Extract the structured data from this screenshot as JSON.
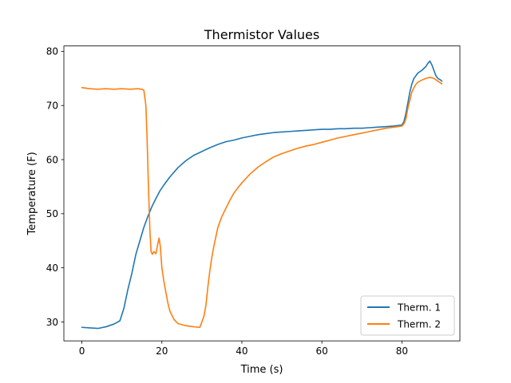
{
  "chart_data": {
    "type": "line",
    "title": "Thermistor Values",
    "xlabel": "Time (s)",
    "ylabel": "Temperature (F)",
    "xlim": [
      -4.5,
      94.5
    ],
    "ylim": [
      26.5,
      81.0
    ],
    "xticks": [
      0,
      20,
      40,
      60,
      80
    ],
    "yticks": [
      30,
      40,
      50,
      60,
      70,
      80
    ],
    "grid": false,
    "legend_position": "lower-right",
    "series": [
      {
        "name": "Therm. 1",
        "color": "#1f77b4",
        "x": [
          0,
          2,
          4,
          6,
          8,
          9.5,
          10.5,
          11.5,
          12.5,
          13.5,
          14.5,
          15.5,
          16.5,
          17.5,
          18.5,
          19.5,
          20.5,
          22,
          24,
          26,
          28,
          30,
          32,
          34,
          36,
          38,
          40,
          42,
          44,
          46,
          48,
          50,
          52,
          54,
          56,
          58,
          60,
          62,
          64,
          66,
          68,
          70,
          72,
          74,
          76,
          78,
          80,
          80.5,
          81,
          81.5,
          82,
          82.5,
          83,
          84,
          85,
          86,
          86.5,
          87,
          87.5,
          88,
          88.5,
          89,
          89.5,
          90
        ],
        "values": [
          29,
          28.9,
          28.8,
          29.1,
          29.6,
          30.2,
          32.5,
          36,
          39,
          42.5,
          45,
          47.5,
          49.5,
          51.3,
          52.8,
          54.2,
          55.3,
          56.8,
          58.5,
          59.8,
          60.8,
          61.5,
          62.2,
          62.8,
          63.3,
          63.6,
          64,
          64.3,
          64.6,
          64.8,
          65,
          65.1,
          65.2,
          65.3,
          65.4,
          65.5,
          65.6,
          65.6,
          65.7,
          65.7,
          65.8,
          65.8,
          65.9,
          66,
          66.1,
          66.2,
          66.4,
          67,
          68.5,
          70.5,
          72.5,
          74,
          75,
          76,
          76.5,
          77.2,
          77.8,
          78.2,
          77.5,
          76.5,
          75.5,
          75,
          74.8,
          74.5
        ]
      },
      {
        "name": "Therm. 2",
        "color": "#ff7f0e",
        "x": [
          0,
          2,
          4,
          6,
          8,
          10,
          12,
          14,
          15,
          15.5,
          16,
          16.3,
          16.6,
          17,
          17.3,
          17.6,
          18,
          18.5,
          19,
          19.3,
          19.6,
          20,
          20.5,
          21,
          21.5,
          22,
          23,
          24,
          26,
          28,
          29.5,
          30.5,
          31,
          31.5,
          32,
          32.5,
          33,
          34,
          35,
          36,
          37,
          38,
          39,
          40,
          41,
          42,
          44,
          46,
          48,
          50,
          52,
          54,
          56,
          58,
          60,
          62,
          64,
          66,
          68,
          70,
          72,
          74,
          76,
          78,
          79,
          80,
          80.5,
          81,
          81.5,
          82,
          82.5,
          83,
          83.5,
          84,
          85,
          86,
          87,
          88,
          89,
          90
        ],
        "values": [
          73.3,
          73.1,
          73,
          73.1,
          73,
          73.1,
          73,
          73.1,
          73,
          72.8,
          70,
          64,
          56,
          47,
          43,
          42.5,
          43,
          42.6,
          44.5,
          45.5,
          44,
          40,
          37.5,
          35.5,
          33.5,
          32,
          30.5,
          29.7,
          29.3,
          29.1,
          29,
          31,
          33,
          36.5,
          39.5,
          42,
          44,
          47.5,
          49.5,
          51,
          52.5,
          53.8,
          54.8,
          55.7,
          56.5,
          57.3,
          58.6,
          59.6,
          60.5,
          61.1,
          61.6,
          62.1,
          62.5,
          62.8,
          63.2,
          63.6,
          64,
          64.3,
          64.6,
          64.9,
          65.2,
          65.5,
          65.8,
          66,
          66.1,
          66.2,
          66.6,
          67.5,
          69.5,
          71,
          72.5,
          73.3,
          73.9,
          74.3,
          74.7,
          75,
          75.2,
          75,
          74.5,
          74
        ]
      }
    ]
  }
}
